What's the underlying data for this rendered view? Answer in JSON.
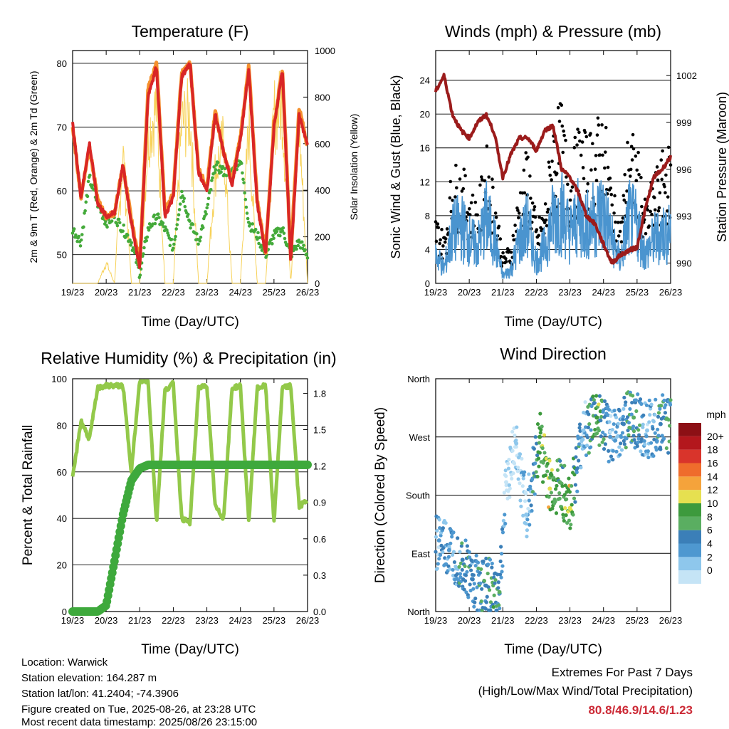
{
  "footer": {
    "location": "Location: Warwick",
    "elevation": "Station elevation: 164.287 m",
    "latlon": "Station lat/lon: 41.2404; -74.3906",
    "created": "Figure created on Tue, 2025-08-26, at 23:28 UTC",
    "recent": "Most recent data timestamp: 2025/08/26 23:15:00",
    "extremes_title": "Extremes For Past 7 Days",
    "extremes_sub": "(High/Low/Max Wind/Total Precipitation)",
    "extremes_values": "80.8/46.9/14.6/1.23"
  },
  "colors": {
    "temp": "#d92626",
    "temp9": "#f5912e",
    "dew": "#44aa3a",
    "solar": "#f7d25a",
    "wind": "#4a94cf",
    "gust": "#000000",
    "pressure": "#9b1b1b",
    "rh": "#93c94a",
    "precip": "#3ea93c"
  },
  "x_ticks": [
    "19/23",
    "20/23",
    "21/23",
    "22/23",
    "23/23",
    "24/23",
    "25/23",
    "26/23"
  ],
  "x_label": "Time (Day/UTC)",
  "chart_data": [
    {
      "type": "line",
      "title": "Temperature (F)",
      "xlabel": "Time (Day/UTC)",
      "ylabel": "2m & 9m T (Red, Orange) & 2m Td (Green)",
      "y2label": "Solar Insolation (Yellow)",
      "ylim": [
        45.5,
        82
      ],
      "y2lim": [
        0,
        1000
      ],
      "yticks": [
        50,
        60,
        70,
        80
      ],
      "y2ticks": [
        0,
        200,
        400,
        600,
        800,
        1000
      ],
      "x": [
        0,
        0.25,
        0.5,
        0.75,
        1,
        1.25,
        1.5,
        1.75,
        2,
        2.25,
        2.5,
        2.75,
        3,
        3.25,
        3.5,
        3.75,
        4,
        4.25,
        4.5,
        4.75,
        5,
        5.25,
        5.5,
        5.75,
        6,
        6.25,
        6.5,
        6.75,
        7
      ],
      "series": [
        {
          "name": "2m T",
          "values": [
            70.5,
            59,
            67.5,
            58,
            56,
            56.5,
            64,
            55,
            48,
            75,
            79.5,
            56,
            59,
            78,
            80,
            63,
            60,
            72,
            66,
            61,
            68,
            79,
            58,
            50,
            70,
            79,
            49,
            72,
            67
          ]
        },
        {
          "name": "9m T",
          "values": [
            70,
            59,
            67,
            58.5,
            56,
            56.5,
            64,
            55.5,
            48.5,
            76,
            80,
            57,
            59.5,
            78.5,
            80,
            63.5,
            60.5,
            72.5,
            66,
            61.5,
            68.5,
            79.5,
            58.5,
            50.5,
            70.5,
            79,
            50,
            73,
            67
          ]
        },
        {
          "name": "2m Td",
          "values": [
            54,
            52,
            62,
            58,
            55,
            56,
            54,
            52,
            47,
            54,
            56,
            54,
            51,
            60,
            55,
            52,
            57,
            64,
            63,
            63,
            65,
            55,
            53,
            50,
            53,
            54,
            50,
            52,
            50
          ]
        },
        {
          "name": "Solar Insolation",
          "values": [
            0,
            0,
            0,
            0,
            110,
            0,
            700,
            0,
            0,
            800,
            950,
            0,
            0,
            850,
            900,
            0,
            0,
            600,
            750,
            0,
            0,
            850,
            0,
            0,
            900,
            950,
            0,
            850,
            0
          ]
        }
      ]
    },
    {
      "type": "line",
      "title": "Winds (mph) & Pressure (mb)",
      "xlabel": "Time (Day/UTC)",
      "ylabel": "Sonic Wind & Gust (Blue, Black)",
      "y2label": "Station Pressure (Maroon)",
      "ylim": [
        0,
        27.5
      ],
      "y2lim": [
        988.7,
        1003.6
      ],
      "yticks": [
        0,
        4,
        8,
        12,
        16,
        20,
        24
      ],
      "y2ticks": [
        990,
        993,
        996,
        999,
        1002
      ],
      "x": [
        0,
        0.25,
        0.5,
        0.75,
        1,
        1.25,
        1.5,
        1.75,
        2,
        2.25,
        2.5,
        2.75,
        3,
        3.25,
        3.5,
        3.75,
        4,
        4.25,
        4.5,
        4.75,
        5,
        5.25,
        5.5,
        5.75,
        6,
        6.25,
        6.5,
        6.75,
        7
      ],
      "series": [
        {
          "name": "Sonic Wind",
          "values": [
            4,
            2,
            7,
            8,
            6,
            5,
            9,
            6,
            1,
            2,
            6,
            8,
            3,
            5,
            9,
            10,
            7,
            9,
            8,
            9,
            10,
            6,
            3,
            9,
            8,
            4,
            6,
            7,
            7
          ]
        },
        {
          "name": "Gust",
          "values": [
            7,
            5,
            12,
            12,
            10,
            8,
            14,
            10,
            3,
            4,
            10,
            14,
            6,
            8,
            17,
            18,
            12,
            16,
            15,
            16,
            18,
            10,
            6,
            16,
            14,
            8,
            11,
            13,
            14
          ]
        },
        {
          "name": "Station Pressure",
          "values": [
            1001,
            1002,
            999.5,
            998.5,
            998,
            999,
            999.5,
            998.3,
            995.5,
            997,
            998,
            998,
            997.2,
            998.5,
            998.8,
            996,
            995.5,
            994.5,
            993,
            992.5,
            991.2,
            990,
            990.5,
            990.8,
            991,
            993.5,
            995.5,
            996,
            996.8
          ]
        }
      ]
    },
    {
      "type": "line",
      "title": "Relative Humidity (%) & Precipitation (in)",
      "xlabel": "Time (Day/UTC)",
      "ylabel": "Percent & Total Rainfall",
      "ylim": [
        0,
        100
      ],
      "y2lim": [
        0,
        1.92
      ],
      "yticks": [
        0,
        20,
        40,
        60,
        80,
        100
      ],
      "y2ticks": [
        0.0,
        0.3,
        0.6,
        0.9,
        1.2,
        1.5,
        1.8
      ],
      "x": [
        0,
        0.25,
        0.5,
        0.75,
        1,
        1.25,
        1.5,
        1.75,
        2,
        2.25,
        2.5,
        2.75,
        3,
        3.25,
        3.5,
        3.75,
        4,
        4.25,
        4.5,
        4.75,
        5,
        5.25,
        5.5,
        5.75,
        6,
        6.25,
        6.5,
        6.75,
        7
      ],
      "series": [
        {
          "name": "Relative Humidity",
          "values": [
            57,
            82,
            74,
            96,
            97,
            97,
            97,
            60,
            99,
            99,
            38,
            95,
            98,
            40,
            38,
            96,
            97,
            45,
            40,
            96,
            97,
            38,
            96,
            97,
            38,
            96,
            97,
            45,
            48
          ]
        },
        {
          "name": "Total Precipitation",
          "values": [
            0,
            0,
            0,
            0,
            0.05,
            0.42,
            0.8,
            1.08,
            1.18,
            1.21,
            1.21,
            1.21,
            1.21,
            1.21,
            1.21,
            1.21,
            1.21,
            1.21,
            1.21,
            1.21,
            1.21,
            1.21,
            1.21,
            1.21,
            1.21,
            1.21,
            1.21,
            1.21,
            1.21
          ]
        }
      ]
    },
    {
      "type": "scatter",
      "title": "Wind Direction",
      "xlabel": "Time (Day/UTC)",
      "ylabel": "Direction (Colored By Speed)",
      "yticks": [
        "North",
        "East",
        "South",
        "West",
        "North"
      ],
      "ylim": [
        0,
        360
      ],
      "colorbar_title": "mph",
      "colorbar_labels": [
        "0",
        "2",
        "4",
        "6",
        "8",
        "10",
        "12",
        "14",
        "16",
        "18",
        "20+"
      ],
      "colorbar_colors": [
        "#c5e4f6",
        "#8ec7ec",
        "#4e98d0",
        "#3b7fb8",
        "#5aae61",
        "#3d9a3d",
        "#e6e050",
        "#f5a33b",
        "#ef6c2c",
        "#d9342b",
        "#b3171d",
        "#8c1015"
      ],
      "points": [
        {
          "x": 0.1,
          "dir": 110,
          "speed": 4
        },
        {
          "x": 0.4,
          "dir": 95,
          "speed": 5
        },
        {
          "x": 0.8,
          "dir": 80,
          "speed": 6
        },
        {
          "x": 1.1,
          "dir": 50,
          "speed": 6
        },
        {
          "x": 1.5,
          "dir": 40,
          "speed": 7
        },
        {
          "x": 1.9,
          "dir": 30,
          "speed": 8
        },
        {
          "x": 2.1,
          "dir": 200,
          "speed": 1
        },
        {
          "x": 2.4,
          "dir": 260,
          "speed": 2
        },
        {
          "x": 2.7,
          "dir": 150,
          "speed": 3
        },
        {
          "x": 3.1,
          "dir": 270,
          "speed": 10
        },
        {
          "x": 3.4,
          "dir": 190,
          "speed": 12
        },
        {
          "x": 3.7,
          "dir": 200,
          "speed": 8
        },
        {
          "x": 4.0,
          "dir": 160,
          "speed": 12
        },
        {
          "x": 4.4,
          "dir": 280,
          "speed": 3
        },
        {
          "x": 4.8,
          "dir": 300,
          "speed": 11
        },
        {
          "x": 5.2,
          "dir": 270,
          "speed": 4
        },
        {
          "x": 5.6,
          "dir": 290,
          "speed": 6
        },
        {
          "x": 5.9,
          "dir": 300,
          "speed": 8
        },
        {
          "x": 6.3,
          "dir": 280,
          "speed": 3
        },
        {
          "x": 6.7,
          "dir": 290,
          "speed": 7
        }
      ]
    }
  ]
}
